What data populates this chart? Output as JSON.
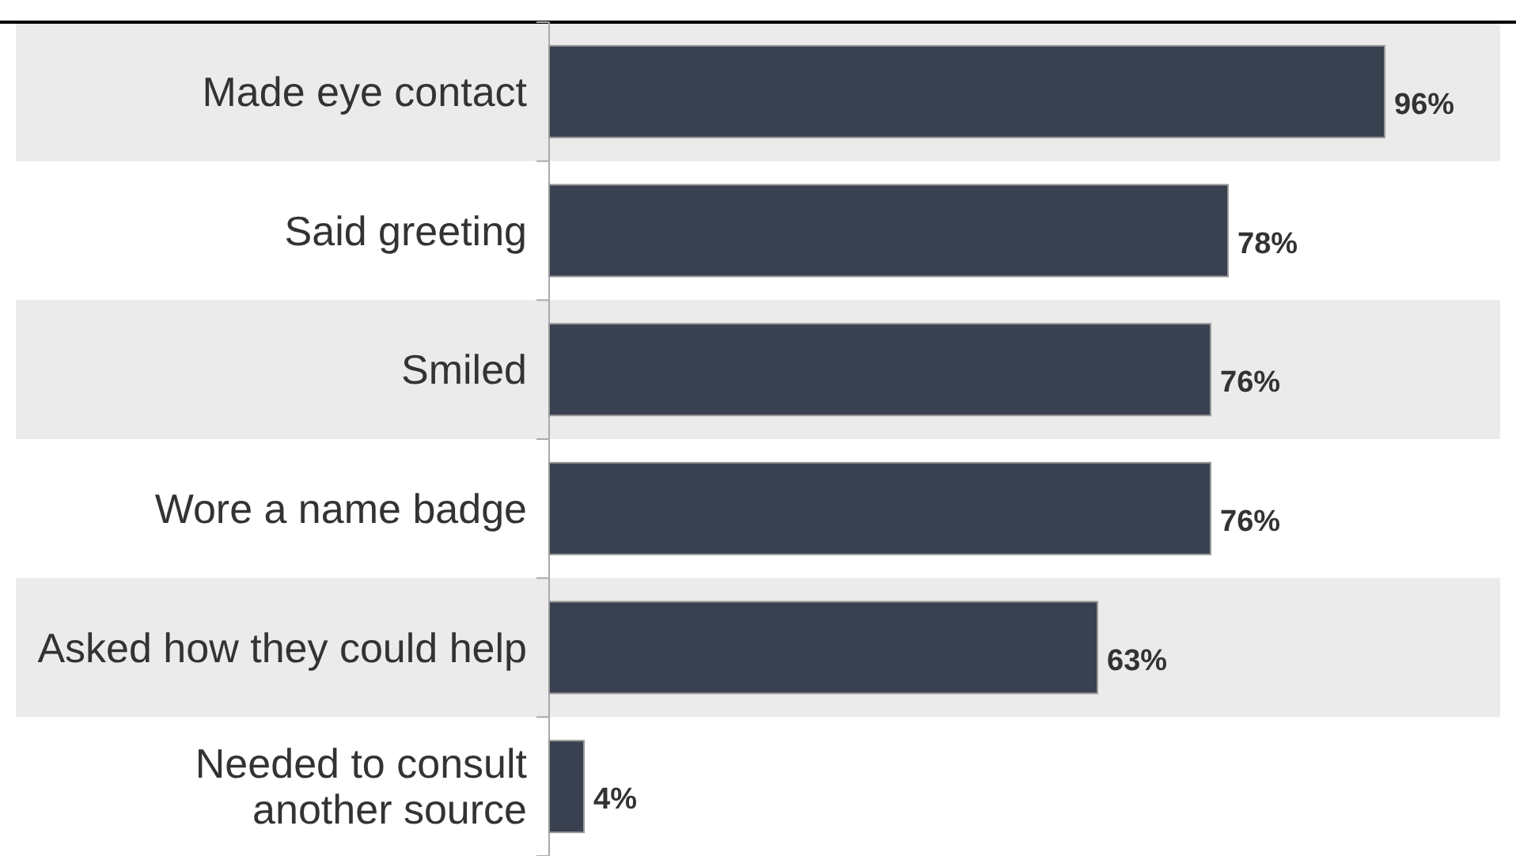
{
  "chart_data": {
    "type": "bar",
    "orientation": "horizontal",
    "categories": [
      "Made eye contact",
      "Said greeting",
      "Smiled",
      "Wore a name badge",
      "Asked how they could help",
      "Needed to consult another source"
    ],
    "values": [
      96,
      78,
      76,
      76,
      63,
      4
    ],
    "value_labels": [
      "96%",
      "78%",
      "76%",
      "76%",
      "63%",
      "4%"
    ],
    "color": "#394150"
  }
}
